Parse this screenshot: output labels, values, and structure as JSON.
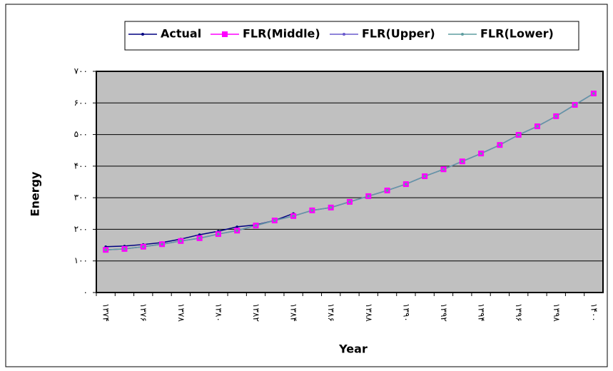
{
  "chart_data": {
    "type": "line",
    "x_label": "Year",
    "y_label": "Energy",
    "categories": [
      "۱۳۷۴",
      null,
      "۱۳۷۶",
      null,
      "۱۳۷۸",
      null,
      "۱۳۸۰",
      null,
      "۱۳۸۲",
      null,
      "۱۳۸۴",
      null,
      "۱۳۸۶",
      null,
      "۱۳۸۸",
      null,
      "۱۳۹۰",
      null,
      "۱۳۹۲",
      null,
      "۱۳۹۴",
      null,
      "۱۳۹۶",
      null,
      "۱۳۹۸",
      null,
      "۱۴۰۰"
    ],
    "series": [
      {
        "name": "Actual",
        "color": "#000080",
        "marker": "dot",
        "values": [
          145,
          147,
          152,
          158,
          169,
          183,
          194,
          208,
          214,
          228,
          250,
          null,
          null,
          null,
          null,
          null,
          null,
          null,
          null,
          null,
          null,
          null,
          null,
          null,
          null,
          null,
          null
        ]
      },
      {
        "name": "FLR(Middle)",
        "color": "#ff00ff",
        "marker": "square",
        "values": [
          135,
          138,
          145,
          153,
          163,
          172,
          185,
          196,
          212,
          228,
          242,
          260,
          269,
          287,
          305,
          323,
          343,
          368,
          390,
          415,
          440,
          467,
          499,
          526,
          558,
          594,
          630
        ]
      },
      {
        "name": "FLR(Upper)",
        "color": "#6a5acd",
        "marker": "dot",
        "values": [
          135,
          138,
          145,
          153,
          163,
          172,
          185,
          196,
          212,
          228,
          242,
          260,
          269,
          287,
          305,
          323,
          343,
          368,
          390,
          415,
          440,
          467,
          499,
          526,
          558,
          594,
          630
        ]
      },
      {
        "name": "FLR(Lower)",
        "color": "#5f9ea0",
        "marker": "dot",
        "values": [
          135,
          138,
          145,
          153,
          163,
          172,
          185,
          196,
          212,
          228,
          242,
          260,
          269,
          287,
          305,
          323,
          343,
          368,
          390,
          415,
          440,
          467,
          499,
          526,
          558,
          594,
          630
        ]
      }
    ],
    "ylim": [
      0,
      700
    ],
    "yticks": [
      {
        "value": 0,
        "label": "۰"
      },
      {
        "value": 100,
        "label": "۱۰۰"
      },
      {
        "value": 200,
        "label": "۲۰۰"
      },
      {
        "value": 300,
        "label": "۳۰۰"
      },
      {
        "value": 400,
        "label": "۴۰۰"
      },
      {
        "value": 500,
        "label": "۵۰۰"
      },
      {
        "value": 600,
        "label": "۶۰۰"
      },
      {
        "value": 700,
        "label": "۷۰۰"
      }
    ],
    "grid": true,
    "legend": "top"
  }
}
